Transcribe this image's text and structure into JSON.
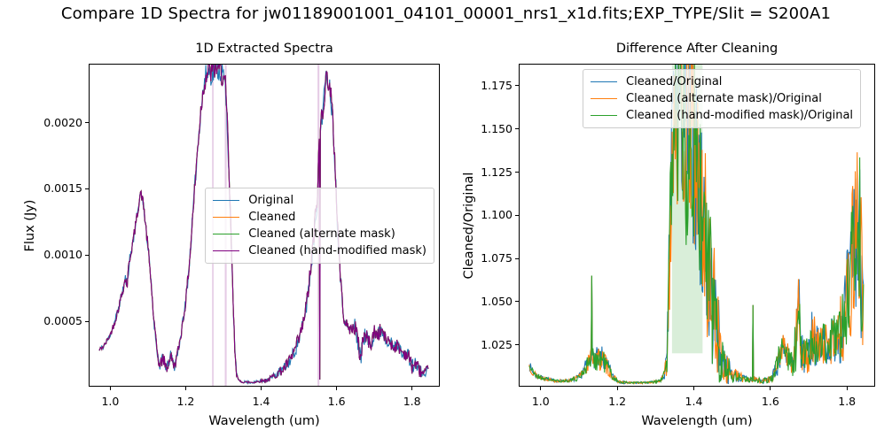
{
  "figure_title": "Compare 1D Spectra for jw01189001001_04101_00001_nrs1_x1d.fits;EXP_TYPE/Slit = S200A1",
  "colors": {
    "series_blue": "#1f77b4",
    "series_orange": "#ff7f0e",
    "series_green": "#2ca02c",
    "series_purple": "#800080",
    "axis": "#000000",
    "legend_border": "#cccccc"
  },
  "chart_data": [
    {
      "type": "line",
      "title": "1D Extracted Spectra",
      "xlabel": "Wavelength (um)",
      "ylabel": "Flux (Jy)",
      "xlim": [
        0.945,
        1.8713
      ],
      "ylim": [
        1.3e-05,
        0.002438
      ],
      "grid": false,
      "legend_position": "center-right",
      "xticks": {
        "values": [
          1.0,
          1.2,
          1.4,
          1.6,
          1.8
        ],
        "labels": [
          "1.0",
          "1.2",
          "1.4",
          "1.6",
          "1.8"
        ]
      },
      "yticks": {
        "values": [
          0.0005,
          0.001,
          0.0015,
          0.002
        ],
        "labels": [
          "0.0005",
          "0.0010",
          "0.0015",
          "0.0020"
        ]
      },
      "band_color": "rgba(128,0,128,0.20)",
      "bands": [
        {
          "x": 1.272,
          "width": 0.004
        },
        {
          "x": 1.306,
          "width": 0.005
        },
        {
          "x": 1.552,
          "width": 0.005
        }
      ],
      "anchor_sets": {
        "spec": [
          [
            0.97,
            0.00028,
            2e-05
          ],
          [
            0.985,
            0.00032,
            2e-05
          ],
          [
            1.0,
            0.0004,
            2e-05
          ],
          [
            1.01,
            0.00048,
            3e-05
          ],
          [
            1.02,
            0.00058,
            3e-05
          ],
          [
            1.03,
            0.0007,
            3e-05
          ],
          [
            1.04,
            0.00082,
            4e-05
          ],
          [
            1.045,
            0.00078,
            5e-05
          ],
          [
            1.05,
            0.00095,
            4e-05
          ],
          [
            1.06,
            0.0011,
            4e-05
          ],
          [
            1.07,
            0.00128,
            4e-05
          ],
          [
            1.075,
            0.00138,
            4e-05
          ],
          [
            1.08,
            0.00147,
            3e-05
          ],
          [
            1.085,
            0.00143,
            4e-05
          ],
          [
            1.09,
            0.00133,
            4e-05
          ],
          [
            1.1,
            0.00105,
            5e-05
          ],
          [
            1.105,
            0.0009,
            4e-05
          ],
          [
            1.11,
            0.00072,
            4e-05
          ],
          [
            1.115,
            0.00052,
            4e-05
          ],
          [
            1.12,
            0.00038,
            3e-05
          ],
          [
            1.125,
            0.00026,
            3e-05
          ],
          [
            1.13,
            0.00016,
            4e-05
          ],
          [
            1.14,
            0.00022,
            5e-05
          ],
          [
            1.15,
            0.00014,
            4e-05
          ],
          [
            1.16,
            0.00024,
            4e-05
          ],
          [
            1.17,
            0.00016,
            4e-05
          ],
          [
            1.18,
            0.00028,
            4e-05
          ],
          [
            1.19,
            0.00045,
            4e-05
          ],
          [
            1.2,
            0.00065,
            4e-05
          ],
          [
            1.21,
            0.00095,
            5e-05
          ],
          [
            1.22,
            0.00135,
            6e-05
          ],
          [
            1.23,
            0.00175,
            6e-05
          ],
          [
            1.24,
            0.0021,
            7e-05
          ],
          [
            1.25,
            0.00232,
            9e-05
          ],
          [
            1.26,
            0.0024,
            0.0001
          ],
          [
            1.27,
            0.00238,
            0.00011
          ],
          [
            1.28,
            0.00243,
            0.0001
          ],
          [
            1.29,
            0.0024,
            0.0001
          ],
          [
            1.3,
            0.00235,
            0.0001
          ],
          [
            1.305,
            0.00224,
            0.00012
          ],
          [
            1.31,
            0.002,
            0.0001
          ],
          [
            1.315,
            0.0016,
            8e-05
          ],
          [
            1.32,
            0.00115,
            6e-05
          ],
          [
            1.325,
            0.0007,
            5e-05
          ],
          [
            1.33,
            0.0003,
            4e-05
          ],
          [
            1.335,
            0.0001,
            2e-05
          ],
          [
            1.34,
            5e-05,
            1e-05
          ],
          [
            1.36,
            4e-05,
            1e-05
          ],
          [
            1.38,
            4e-05,
            1e-05
          ],
          [
            1.4,
            5e-05,
            1e-05
          ],
          [
            1.42,
            6e-05,
            2e-05
          ],
          [
            1.44,
            0.0001,
            3e-05
          ],
          [
            1.46,
            0.00014,
            4e-05
          ],
          [
            1.48,
            0.00022,
            5e-05
          ],
          [
            1.5,
            0.00036,
            6e-05
          ],
          [
            1.51,
            0.00046,
            6e-05
          ],
          [
            1.52,
            0.00062,
            7e-05
          ],
          [
            1.53,
            0.00085,
            8e-05
          ],
          [
            1.54,
            0.00115,
            9e-05
          ],
          [
            1.55,
            0.0015,
            0.0001
          ],
          [
            1.554,
            0.00185,
            8e-05
          ],
          [
            1.5555,
            6e-05,
            0.0
          ],
          [
            1.557,
            0.00195,
            8e-05
          ],
          [
            1.56,
            0.00205,
            0.0001
          ],
          [
            1.565,
            0.00215,
            0.0001
          ],
          [
            1.57,
            0.00228,
            0.0001
          ],
          [
            1.575,
            0.00235,
            8e-05
          ],
          [
            1.58,
            0.0023,
            8e-05
          ],
          [
            1.585,
            0.0022,
            9e-05
          ],
          [
            1.59,
            0.002,
            9e-05
          ],
          [
            1.595,
            0.00175,
            8e-05
          ],
          [
            1.6,
            0.0014,
            8e-05
          ],
          [
            1.605,
            0.0011,
            7e-05
          ],
          [
            1.61,
            0.00085,
            6e-05
          ],
          [
            1.615,
            0.00065,
            5e-05
          ],
          [
            1.62,
            0.00052,
            4e-05
          ],
          [
            1.63,
            0.00045,
            4e-05
          ],
          [
            1.64,
            0.00044,
            5e-05
          ],
          [
            1.65,
            0.00046,
            7e-05
          ],
          [
            1.66,
            0.00028,
            8e-05
          ],
          [
            1.665,
            0.00022,
            6e-05
          ],
          [
            1.67,
            0.0004,
            8e-05
          ],
          [
            1.68,
            0.00038,
            6e-05
          ],
          [
            1.69,
            0.00032,
            5e-05
          ],
          [
            1.7,
            0.00042,
            7e-05
          ],
          [
            1.71,
            0.0004,
            6e-05
          ],
          [
            1.72,
            0.00044,
            6e-05
          ],
          [
            1.73,
            0.00036,
            5e-05
          ],
          [
            1.74,
            0.00036,
            5e-05
          ],
          [
            1.75,
            0.0003,
            5e-05
          ],
          [
            1.76,
            0.00032,
            5e-05
          ],
          [
            1.77,
            0.00028,
            4e-05
          ],
          [
            1.78,
            0.00026,
            5e-05
          ],
          [
            1.79,
            0.00024,
            5e-05
          ],
          [
            1.8,
            0.00016,
            6e-05
          ],
          [
            1.81,
            0.00018,
            5e-05
          ],
          [
            1.82,
            0.00013,
            5e-05
          ],
          [
            1.83,
            0.0001,
            4e-05
          ],
          [
            1.843,
            0.00014,
            3e-05
          ]
        ]
      },
      "series": [
        {
          "label": "Original",
          "color": "#1f77b4",
          "seed": 11,
          "anchors": "spec"
        },
        {
          "label": "Cleaned",
          "color": "#ff7f0e",
          "seed": 42,
          "anchors": "spec"
        },
        {
          "label": "Cleaned (alternate mask)",
          "color": "#2ca02c",
          "seed": 42,
          "anchors": "spec"
        },
        {
          "label": "Cleaned (hand-modified mask)",
          "color": "#800080",
          "seed": 42,
          "anchors": "spec"
        }
      ]
    },
    {
      "type": "line",
      "title": "Difference After Cleaning",
      "xlabel": "Wavelength (um)",
      "ylabel": "Cleaned/Original",
      "xlim": [
        0.945,
        1.8713
      ],
      "ylim": [
        1.0012,
        1.1873
      ],
      "grid": false,
      "legend_position": "upper-center",
      "xticks": {
        "values": [
          1.0,
          1.2,
          1.4,
          1.6,
          1.8
        ],
        "labels": [
          "1.0",
          "1.2",
          "1.4",
          "1.6",
          "1.8"
        ]
      },
      "yticks": {
        "values": [
          1.025,
          1.05,
          1.075,
          1.1,
          1.125,
          1.15,
          1.175
        ],
        "labels": [
          "1.025",
          "1.050",
          "1.075",
          "1.100",
          "1.125",
          "1.150",
          "1.175"
        ]
      },
      "band_color": "rgba(44,160,44,0.18)",
      "bands": [
        {
          "x": 1.383,
          "width": 0.08,
          "y_bottom": 1.02
        }
      ],
      "anchor_sets": {
        "ratio": [
          [
            0.97,
            1.013,
            0.003
          ],
          [
            0.98,
            1.009,
            0.002
          ],
          [
            0.99,
            1.007,
            0.002
          ],
          [
            1.0,
            1.006,
            0.0015
          ],
          [
            1.02,
            1.005,
            0.001
          ],
          [
            1.04,
            1.004,
            0.0008
          ],
          [
            1.06,
            1.004,
            0.0008
          ],
          [
            1.08,
            1.0045,
            0.001
          ],
          [
            1.1,
            1.006,
            0.002
          ],
          [
            1.11,
            1.009,
            0.003
          ],
          [
            1.12,
            1.013,
            0.005
          ],
          [
            1.13,
            1.016,
            0.006
          ],
          [
            1.132,
            1.02,
            0.004
          ],
          [
            1.1335,
            1.065,
            0.0
          ],
          [
            1.135,
            1.018,
            0.005
          ],
          [
            1.14,
            1.018,
            0.007
          ],
          [
            1.15,
            1.016,
            0.007
          ],
          [
            1.16,
            1.017,
            0.007
          ],
          [
            1.17,
            1.014,
            0.006
          ],
          [
            1.18,
            1.01,
            0.004
          ],
          [
            1.19,
            1.006,
            0.002
          ],
          [
            1.2,
            1.004,
            0.001
          ],
          [
            1.22,
            1.003,
            0.0008
          ],
          [
            1.24,
            1.003,
            0.0006
          ],
          [
            1.26,
            1.003,
            0.0006
          ],
          [
            1.28,
            1.003,
            0.0006
          ],
          [
            1.3,
            1.0035,
            0.0008
          ],
          [
            1.31,
            1.004,
            0.001
          ],
          [
            1.32,
            1.006,
            0.002
          ],
          [
            1.33,
            1.015,
            0.008
          ],
          [
            1.335,
            1.06,
            0.03
          ],
          [
            1.34,
            1.12,
            0.05
          ],
          [
            1.345,
            1.15,
            0.06
          ],
          [
            1.35,
            1.17,
            0.06
          ],
          [
            1.36,
            1.16,
            0.07
          ],
          [
            1.37,
            1.17,
            0.07
          ],
          [
            1.38,
            1.15,
            0.07
          ],
          [
            1.39,
            1.16,
            0.06
          ],
          [
            1.4,
            1.14,
            0.06
          ],
          [
            1.41,
            1.12,
            0.06
          ],
          [
            1.42,
            1.1,
            0.05
          ],
          [
            1.43,
            1.09,
            0.05
          ],
          [
            1.44,
            1.06,
            0.045
          ],
          [
            1.45,
            1.05,
            0.04
          ],
          [
            1.46,
            1.035,
            0.03
          ],
          [
            1.47,
            1.02,
            0.018
          ],
          [
            1.48,
            1.015,
            0.012
          ],
          [
            1.49,
            1.01,
            0.008
          ],
          [
            1.5,
            1.008,
            0.005
          ],
          [
            1.52,
            1.006,
            0.003
          ],
          [
            1.54,
            1.005,
            0.002
          ],
          [
            1.553,
            1.005,
            0.002
          ],
          [
            1.5545,
            1.048,
            0.0
          ],
          [
            1.556,
            1.005,
            0.002
          ],
          [
            1.58,
            1.004,
            0.0015
          ],
          [
            1.6,
            1.005,
            0.002
          ],
          [
            1.61,
            1.008,
            0.004
          ],
          [
            1.62,
            1.015,
            0.008
          ],
          [
            1.63,
            1.024,
            0.008
          ],
          [
            1.64,
            1.022,
            0.008
          ],
          [
            1.65,
            1.015,
            0.008
          ],
          [
            1.66,
            1.013,
            0.008
          ],
          [
            1.668,
            1.03,
            0.02
          ],
          [
            1.675,
            1.045,
            0.025
          ],
          [
            1.68,
            1.02,
            0.012
          ],
          [
            1.69,
            1.018,
            0.01
          ],
          [
            1.7,
            1.022,
            0.015
          ],
          [
            1.71,
            1.03,
            0.018
          ],
          [
            1.72,
            1.025,
            0.012
          ],
          [
            1.73,
            1.022,
            0.012
          ],
          [
            1.74,
            1.028,
            0.015
          ],
          [
            1.75,
            1.022,
            0.01
          ],
          [
            1.76,
            1.028,
            0.014
          ],
          [
            1.77,
            1.03,
            0.015
          ],
          [
            1.78,
            1.032,
            0.018
          ],
          [
            1.79,
            1.04,
            0.025
          ],
          [
            1.8,
            1.05,
            0.03
          ],
          [
            1.81,
            1.06,
            0.035
          ],
          [
            1.815,
            1.08,
            0.045
          ],
          [
            1.82,
            1.09,
            0.05
          ],
          [
            1.825,
            1.1,
            0.06
          ],
          [
            1.83,
            1.09,
            0.06
          ],
          [
            1.835,
            1.08,
            0.05
          ],
          [
            1.843,
            1.06,
            0.04
          ]
        ]
      },
      "series": [
        {
          "label": "Cleaned/Original",
          "color": "#1f77b4",
          "seed": 7,
          "anchors": "ratio"
        },
        {
          "label": "Cleaned (alternate mask)/Original",
          "color": "#ff7f0e",
          "seed": 13,
          "anchors": "ratio"
        },
        {
          "label": "Cleaned (hand-modified mask)/Original",
          "color": "#2ca02c",
          "seed": 21,
          "anchors": "ratio"
        }
      ]
    }
  ]
}
